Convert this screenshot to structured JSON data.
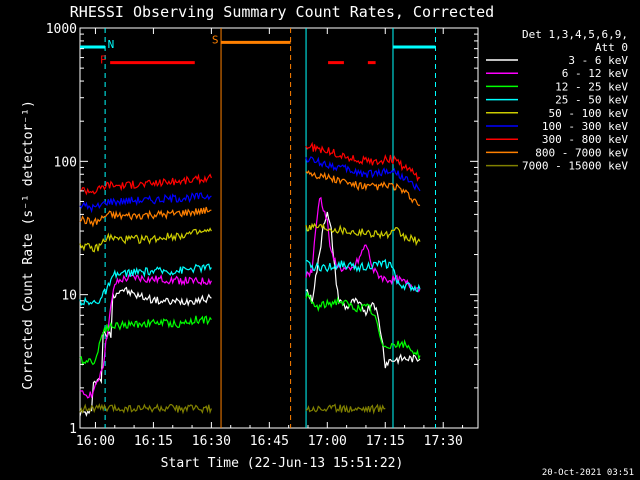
{
  "chart_data": {
    "type": "line",
    "title": "RHESSI Observing Summary Count Rates, Corrected",
    "xlabel": "Start Time (22-Jun-13 15:51:22)",
    "ylabel": "Corrected Count Rate (s⁻¹ detector⁻¹)",
    "y_log": true,
    "ylim": [
      1,
      1000
    ],
    "xlim_minutes": [
      -4,
      99
    ],
    "x_ticks": [
      {
        "label": "16:00",
        "min": 0
      },
      {
        "label": "16:15",
        "min": 15
      },
      {
        "label": "16:30",
        "min": 30
      },
      {
        "label": "16:45",
        "min": 45
      },
      {
        "label": "17:00",
        "min": 60
      },
      {
        "label": "17:15",
        "min": 75
      },
      {
        "label": "17:30",
        "min": 90
      }
    ],
    "y_ticks": [
      {
        "label": "1",
        "value": 1
      },
      {
        "label": "10",
        "value": 10
      },
      {
        "label": "100",
        "value": 100
      },
      {
        "label": "1000",
        "value": 1000
      }
    ],
    "legend": {
      "header": [
        "Det 1,3,4,5,6,9,",
        "Att 0"
      ],
      "placement": "right"
    },
    "series": [
      {
        "name": "3 - 6 keV",
        "color": "#ffffff",
        "segments": [
          [
            [
              -4,
              1.3
            ],
            [
              -1,
              1.3
            ],
            [
              -0.5,
              2.3
            ],
            [
              1.5,
              2.3
            ],
            [
              2,
              5
            ],
            [
              4,
              5
            ],
            [
              4.5,
              10
            ],
            [
              7,
              11
            ],
            [
              10,
              10
            ],
            [
              13,
              9.5
            ],
            [
              16,
              9
            ],
            [
              20,
              8.8
            ],
            [
              24,
              9
            ],
            [
              27,
              9.2
            ],
            [
              30,
              9.4
            ]
          ],
          [
            [
              54.5,
              11
            ],
            [
              56,
              9
            ],
            [
              58,
              20
            ],
            [
              59,
              35
            ],
            [
              60,
              40
            ],
            [
              61,
              30
            ],
            [
              62,
              15
            ],
            [
              63,
              9
            ],
            [
              65,
              8
            ],
            [
              67,
              9
            ],
            [
              70,
              7.5
            ],
            [
              72,
              9
            ],
            [
              73,
              7
            ],
            [
              74,
              5
            ],
            [
              75,
              3
            ],
            [
              76,
              3.2
            ],
            [
              79,
              3.3
            ],
            [
              84,
              3.3
            ]
          ]
        ]
      },
      {
        "name": "6 - 12 keV",
        "color": "#ff00ff",
        "segments": [
          [
            [
              -4,
              1.8
            ],
            [
              -1,
              1.8
            ],
            [
              0,
              2
            ],
            [
              2,
              3
            ],
            [
              3,
              5
            ],
            [
              4,
              8
            ],
            [
              5,
              12
            ],
            [
              7,
              13
            ],
            [
              10,
              13.5
            ],
            [
              14,
              13
            ],
            [
              18,
              13
            ],
            [
              22,
              12.8
            ],
            [
              26,
              12.5
            ],
            [
              30,
              12.7
            ]
          ],
          [
            [
              54.5,
              14
            ],
            [
              56,
              15
            ],
            [
              57,
              30
            ],
            [
              58,
              55
            ],
            [
              59,
              45
            ],
            [
              60,
              35
            ],
            [
              61,
              20
            ],
            [
              63,
              16
            ],
            [
              66,
              15
            ],
            [
              68,
              18
            ],
            [
              70,
              24
            ],
            [
              72,
              15
            ],
            [
              75,
              13
            ],
            [
              78,
              13
            ],
            [
              81,
              12
            ],
            [
              84,
              11
            ]
          ]
        ]
      },
      {
        "name": "12 - 25 keV",
        "color": "#00ff00",
        "segments": [
          [
            [
              -4,
              3.2
            ],
            [
              0,
              3.2
            ],
            [
              2,
              5.5
            ],
            [
              4,
              5.8
            ],
            [
              10,
              6
            ],
            [
              16,
              6.2
            ],
            [
              22,
              6
            ],
            [
              26,
              6.5
            ],
            [
              30,
              6.5
            ]
          ],
          [
            [
              54.5,
              10
            ],
            [
              57,
              8
            ],
            [
              60,
              8.5
            ],
            [
              63,
              9
            ],
            [
              67,
              8
            ],
            [
              71,
              8
            ],
            [
              73,
              6
            ],
            [
              74,
              4.2
            ],
            [
              77,
              4.2
            ],
            [
              80,
              4.2
            ],
            [
              84,
              3.5
            ]
          ]
        ]
      },
      {
        "name": "25 - 50 keV",
        "color": "#00ffff",
        "segments": [
          [
            [
              -4,
              9
            ],
            [
              -1,
              8.5
            ],
            [
              0,
              9
            ],
            [
              1,
              9
            ],
            [
              3,
              11
            ],
            [
              5,
              14
            ],
            [
              8,
              14.5
            ],
            [
              12,
              14.8
            ],
            [
              16,
              15
            ],
            [
              20,
              15
            ],
            [
              24,
              15.5
            ],
            [
              28,
              16
            ],
            [
              30,
              16
            ]
          ],
          [
            [
              54.5,
              17
            ],
            [
              57,
              16
            ],
            [
              60,
              16
            ],
            [
              64,
              17
            ],
            [
              67,
              16
            ],
            [
              71,
              16.5
            ],
            [
              75,
              17
            ],
            [
              77,
              16.5
            ],
            [
              78,
              12
            ],
            [
              81,
              11.5
            ],
            [
              84,
              11
            ]
          ]
        ]
      },
      {
        "name": "50 - 100 keV",
        "color": "#cccc00",
        "segments": [
          [
            [
              -4,
              24
            ],
            [
              -1,
              22
            ],
            [
              0,
              22
            ],
            [
              1,
              23
            ],
            [
              3,
              27
            ],
            [
              6,
              26
            ],
            [
              10,
              26
            ],
            [
              14,
              26
            ],
            [
              18,
              27
            ],
            [
              22,
              28
            ],
            [
              26,
              29
            ],
            [
              30,
              30
            ]
          ],
          [
            [
              54.5,
              32
            ],
            [
              57,
              33
            ],
            [
              60,
              32
            ],
            [
              63,
              31
            ],
            [
              66,
              30
            ],
            [
              70,
              29
            ],
            [
              73,
              29
            ],
            [
              76,
              28
            ],
            [
              78,
              30
            ],
            [
              80,
              27
            ],
            [
              84,
              25
            ]
          ]
        ]
      },
      {
        "name": "100 - 300 keV",
        "color": "#0000ff",
        "segments": [
          [
            [
              -4,
              47
            ],
            [
              -1,
              45
            ],
            [
              0,
              45
            ],
            [
              1,
              46
            ],
            [
              3,
              50
            ],
            [
              6,
              50
            ],
            [
              10,
              51
            ],
            [
              14,
              51
            ],
            [
              18,
              52
            ],
            [
              22,
              53
            ],
            [
              26,
              54
            ],
            [
              30,
              55
            ]
          ],
          [
            [
              54.5,
              105
            ],
            [
              57,
              100
            ],
            [
              60,
              95
            ],
            [
              63,
              90
            ],
            [
              66,
              85
            ],
            [
              70,
              80
            ],
            [
              73,
              82
            ],
            [
              76,
              85
            ],
            [
              78,
              82
            ],
            [
              80,
              75
            ],
            [
              84,
              60
            ]
          ]
        ]
      },
      {
        "name": "300 - 800 keV",
        "color": "#ff0000",
        "segments": [
          [
            [
              -4,
              62
            ],
            [
              -1,
              60
            ],
            [
              0,
              60
            ],
            [
              1,
              62
            ],
            [
              3,
              67
            ],
            [
              6,
              66
            ],
            [
              10,
              67
            ],
            [
              14,
              68
            ],
            [
              18,
              70
            ],
            [
              22,
              71
            ],
            [
              26,
              73
            ],
            [
              30,
              75
            ]
          ],
          [
            [
              54.5,
              130
            ],
            [
              57,
              125
            ],
            [
              60,
              120
            ],
            [
              63,
              112
            ],
            [
              66,
              105
            ],
            [
              70,
              100
            ],
            [
              73,
              100
            ],
            [
              76,
              105
            ],
            [
              78,
              100
            ],
            [
              80,
              90
            ],
            [
              84,
              75
            ]
          ]
        ]
      },
      {
        "name": "800 - 7000 keV",
        "color": "#ff8000",
        "segments": [
          [
            [
              -4,
              37
            ],
            [
              -1,
              35
            ],
            [
              0,
              35
            ],
            [
              1,
              36
            ],
            [
              3,
              40
            ],
            [
              6,
              39
            ],
            [
              10,
              39
            ],
            [
              14,
              40
            ],
            [
              18,
              40
            ],
            [
              22,
              41
            ],
            [
              26,
              42
            ],
            [
              30,
              43
            ]
          ],
          [
            [
              54.5,
              85
            ],
            [
              57,
              80
            ],
            [
              60,
              76
            ],
            [
              63,
              72
            ],
            [
              66,
              68
            ],
            [
              70,
              64
            ],
            [
              73,
              65
            ],
            [
              76,
              66
            ],
            [
              78,
              64
            ],
            [
              80,
              58
            ],
            [
              84,
              47
            ]
          ]
        ]
      },
      {
        "name": "7000 - 15000 keV",
        "color": "#808000",
        "segments": [
          [
            [
              -4,
              1.4
            ],
            [
              0,
              1.4
            ],
            [
              4,
              1.4
            ],
            [
              8,
              1.4
            ],
            [
              12,
              1.4
            ],
            [
              16,
              1.4
            ],
            [
              20,
              1.4
            ],
            [
              24,
              1.4
            ],
            [
              28,
              1.4
            ],
            [
              30,
              1.4
            ]
          ],
          [
            [
              54.5,
              1.4
            ],
            [
              58,
              1.4
            ],
            [
              62,
              1.4
            ],
            [
              66,
              1.4
            ],
            [
              70,
              1.4
            ],
            [
              74,
              1.4
            ],
            [
              75,
              1.4
            ]
          ]
        ]
      }
    ],
    "attenuator_bars": [
      {
        "label": "F",
        "color": "#ff0000",
        "from": 3.8,
        "to": 25.7,
        "value": 550,
        "label_min": 2
      },
      {
        "label": "",
        "color": "#ff0000",
        "from": 60.2,
        "to": 64.3,
        "value": 550
      },
      {
        "label": "",
        "color": "#ff0000",
        "from": 70.5,
        "to": 72.5,
        "value": 550
      },
      {
        "label": "N",
        "color": "#00ffff",
        "from": -4,
        "to": 2.5,
        "value": 720,
        "label_min": 4
      },
      {
        "label": "",
        "color": "#00ffff",
        "from": 77,
        "to": 88,
        "value": 720
      },
      {
        "label": "S",
        "color": "#ff8000",
        "from": 32.5,
        "to": 50.5,
        "value": 780,
        "label_min": 31
      }
    ],
    "vertical_lines": [
      {
        "min": 2.5,
        "color": "#00ffff",
        "dashed": true
      },
      {
        "min": 32.5,
        "color": "#ff8000",
        "dashed": false
      },
      {
        "min": 50.5,
        "color": "#ff8000",
        "dashed": true
      },
      {
        "min": 54.5,
        "color": "#00ffff",
        "dashed": false
      },
      {
        "min": 77,
        "color": "#00ffff",
        "dashed": false
      },
      {
        "min": 88,
        "color": "#00ffff",
        "dashed": true
      }
    ]
  },
  "footer": {
    "date": "20-Oct-2021 03:51"
  }
}
